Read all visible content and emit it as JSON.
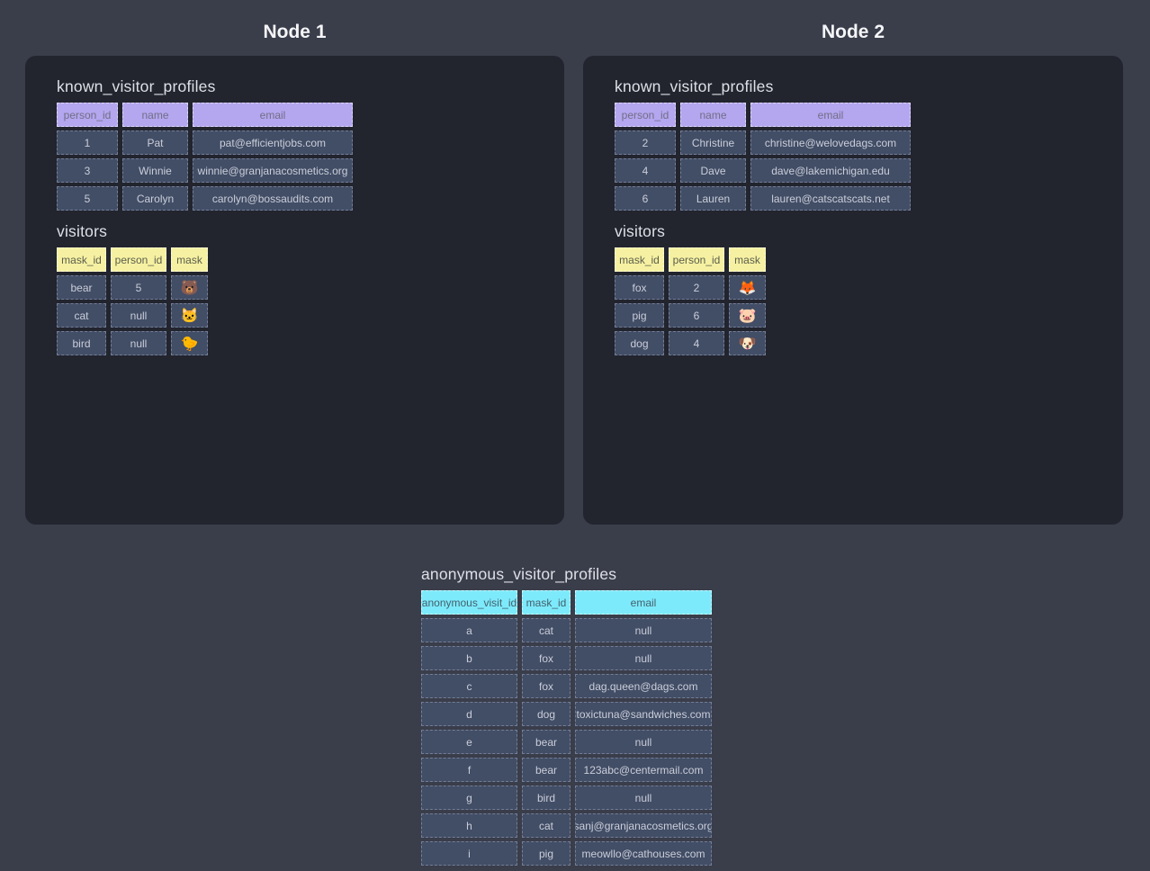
{
  "colors": {
    "page_background": "#3a3d4a",
    "panel_background": "#22242e",
    "cell_background": "#424d66",
    "cell_text": "#c9ced9",
    "header_purple": "#b4a6ef",
    "header_yellow": "#f6f1a2",
    "header_cyan": "#7deafb"
  },
  "node1": {
    "title": "Node 1",
    "known_visitor_profiles": {
      "title": "known_visitor_profiles",
      "headers": [
        "person_id",
        "name",
        "email"
      ],
      "rows": [
        [
          "1",
          "Pat",
          "pat@efficientjobs.com"
        ],
        [
          "3",
          "Winnie",
          "winnie@granjanacosmetics.org"
        ],
        [
          "5",
          "Carolyn",
          "carolyn@bossaudits.com"
        ]
      ]
    },
    "visitors": {
      "title": "visitors",
      "headers": [
        "mask_id",
        "person_id",
        "mask"
      ],
      "rows": [
        [
          "bear",
          "5",
          "🐻"
        ],
        [
          "cat",
          "null",
          "🐱"
        ],
        [
          "bird",
          "null",
          "🐤"
        ]
      ]
    }
  },
  "node2": {
    "title": "Node 2",
    "known_visitor_profiles": {
      "title": "known_visitor_profiles",
      "headers": [
        "person_id",
        "name",
        "email"
      ],
      "rows": [
        [
          "2",
          "Christine",
          "christine@welovedags.com"
        ],
        [
          "4",
          "Dave",
          "dave@lakemichigan.edu"
        ],
        [
          "6",
          "Lauren",
          "lauren@catscatscats.net"
        ]
      ]
    },
    "visitors": {
      "title": "visitors",
      "headers": [
        "mask_id",
        "person_id",
        "mask"
      ],
      "rows": [
        [
          "fox",
          "2",
          "🦊"
        ],
        [
          "pig",
          "6",
          "🐷"
        ],
        [
          "dog",
          "4",
          "🐶"
        ]
      ]
    }
  },
  "anonymous_visitor_profiles": {
    "title": "anonymous_visitor_profiles",
    "headers": [
      "anonymous_visit_id",
      "mask_id",
      "email"
    ],
    "rows": [
      [
        "a",
        "cat",
        "null"
      ],
      [
        "b",
        "fox",
        "null"
      ],
      [
        "c",
        "fox",
        "dag.queen@dags.com"
      ],
      [
        "d",
        "dog",
        "toxictuna@sandwiches.com"
      ],
      [
        "e",
        "bear",
        "null"
      ],
      [
        "f",
        "bear",
        "123abc@centermail.com"
      ],
      [
        "g",
        "bird",
        "null"
      ],
      [
        "h",
        "cat",
        "sanj@granjanacosmetics.org"
      ],
      [
        "i",
        "pig",
        "meowllo@cathouses.com"
      ]
    ]
  }
}
